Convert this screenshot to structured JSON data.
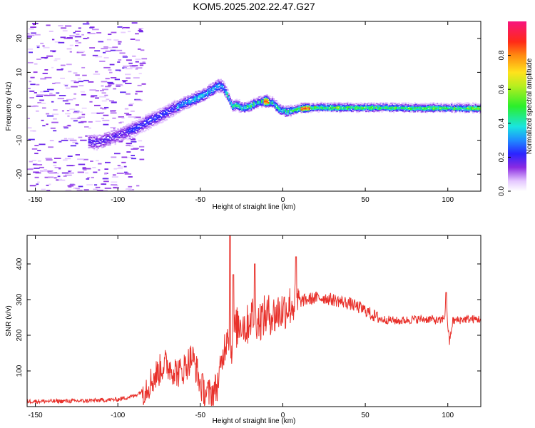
{
  "title": "KOM5.2025.202.22.47.G27",
  "chart_data": [
    {
      "type": "heatmap",
      "xlabel": "Height of straight line (km)",
      "ylabel": "Frequency (Hz)",
      "xlim": [
        -155,
        120
      ],
      "ylim": [
        -25,
        25
      ],
      "xticks": [
        -150,
        -100,
        -50,
        0,
        50,
        100
      ],
      "yticks": [
        -20,
        -10,
        0,
        10,
        20
      ],
      "colorbar": {
        "label": "Normalized spectral amplitude",
        "ticks": [
          0.0,
          0.2,
          0.4,
          0.6,
          0.8
        ],
        "range": [
          0,
          1
        ]
      },
      "ridge": {
        "x": [
          -112,
          -100,
          -90,
          -80,
          -70,
          -62,
          -55,
          -48,
          -43,
          -40,
          -37,
          -34,
          -31,
          -28,
          -25,
          -21,
          -17,
          -13,
          -10,
          -6,
          -2,
          2,
          6,
          10,
          20,
          40,
          60,
          80,
          100,
          120
        ],
        "freq": [
          -10.5,
          -8.5,
          -6.5,
          -4,
          -1.5,
          0.5,
          2,
          3.5,
          5,
          6,
          6,
          3.5,
          0,
          0.5,
          -0.5,
          0,
          1,
          1.5,
          1.5,
          1,
          -1,
          -1.5,
          -1,
          -0.5,
          -0.3,
          -0.3,
          -0.3,
          -0.4,
          -0.4,
          -0.5
        ]
      },
      "grid": false
    },
    {
      "type": "line",
      "xlabel": "Height of straight line (km)",
      "ylabel": "SNR (v/v)",
      "xlim": [
        -155,
        120
      ],
      "ylim": [
        0,
        480
      ],
      "xticks": [
        -150,
        -100,
        -50,
        0,
        50,
        100
      ],
      "yticks": [
        100,
        200,
        300,
        400
      ],
      "series": [
        {
          "color": "#e8302a",
          "x": [
            -155,
            -140,
            -120,
            -100,
            -90,
            -85,
            -80,
            -75,
            -72,
            -68,
            -65,
            -62,
            -58,
            -55,
            -52,
            -50,
            -47,
            -44,
            -40,
            -37,
            -35,
            -33,
            -32,
            -30,
            -28,
            -25,
            -22,
            -20,
            -17,
            -15,
            -12,
            -10,
            -7,
            -5,
            -3,
            0,
            3,
            5,
            8,
            10,
            15,
            20,
            25,
            30,
            35,
            40,
            50,
            55,
            60,
            70,
            80,
            90,
            95,
            98,
            99,
            100,
            101,
            103,
            110,
            120
          ],
          "y": [
            15,
            15,
            16,
            20,
            30,
            45,
            70,
            100,
            120,
            110,
            100,
            95,
            120,
            140,
            100,
            60,
            40,
            35,
            55,
            120,
            180,
            230,
            150,
            200,
            220,
            240,
            220,
            250,
            260,
            240,
            250,
            255,
            260,
            255,
            265,
            270,
            280,
            285,
            290,
            295,
            300,
            305,
            305,
            300,
            295,
            290,
            270,
            255,
            245,
            240,
            245,
            245,
            240,
            250,
            300,
            230,
            180,
            240,
            245,
            245
          ]
        }
      ],
      "peaks": [
        {
          "x": -32,
          "y": 480
        },
        {
          "x": -30,
          "y": 370
        },
        {
          "x": -17,
          "y": 400
        },
        {
          "x": 8,
          "y": 420
        },
        {
          "x": 99,
          "y": 320
        }
      ],
      "grid": false
    }
  ]
}
